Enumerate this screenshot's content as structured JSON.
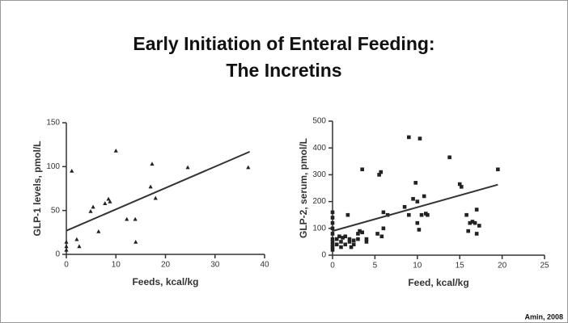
{
  "title": [
    "Early Initiation of Enteral Feeding:",
    "The Incretins"
  ],
  "citation": "Amin, 2008",
  "chart_data": [
    {
      "type": "scatter",
      "marker": "triangle",
      "color": "#222",
      "xlabel": "Feeds, kcal/kg",
      "ylabel": "GLP-1 levels, pmol/L",
      "x": [
        1.1,
        0,
        0,
        0,
        2.1,
        2.6,
        4.9,
        5.4,
        6.5,
        7.8,
        8.5,
        8.8,
        10,
        12.2,
        13.9,
        14,
        17,
        17.3,
        18,
        24.5,
        36.7
      ],
      "values": [
        95,
        14,
        9,
        5,
        17,
        9,
        49,
        54,
        26,
        58,
        63,
        60,
        118,
        40,
        40,
        14,
        77,
        103,
        64,
        99,
        99
      ],
      "trendline": {
        "x": [
          0,
          37
        ],
        "values": [
          27,
          117
        ]
      },
      "xlim": [
        0,
        40
      ],
      "xticks": [
        0,
        10,
        20,
        30,
        40
      ],
      "ylim": [
        0,
        150
      ],
      "yticks": [
        0,
        50,
        100,
        150
      ]
    },
    {
      "type": "scatter",
      "marker": "square",
      "color": "#222",
      "xlabel": "Feed, kcal/kg",
      "ylabel": "GLP-2, serum, pmol/L",
      "x": [
        0,
        0,
        0,
        0,
        0,
        0,
        0,
        0,
        0,
        0,
        0.5,
        0.5,
        0.8,
        1,
        1,
        1.2,
        1.5,
        1.5,
        1.8,
        2,
        2,
        2.2,
        2.5,
        2.5,
        3,
        3,
        3.2,
        3.5,
        3.5,
        4,
        4,
        5.3,
        5.5,
        5.7,
        5.8,
        6,
        6,
        6.5,
        8.5,
        9,
        9,
        9.5,
        9.8,
        10,
        10,
        10.2,
        10.3,
        10.5,
        10.8,
        11,
        11.2,
        13.8,
        15,
        15.2,
        15.8,
        16,
        16.2,
        16.5,
        16.8,
        17,
        17,
        17.3,
        19.5
      ],
      "values": [
        160,
        140,
        120,
        100,
        80,
        60,
        50,
        40,
        30,
        20,
        60,
        40,
        70,
        30,
        50,
        65,
        40,
        70,
        150,
        50,
        60,
        30,
        55,
        40,
        80,
        60,
        90,
        320,
        85,
        50,
        60,
        80,
        300,
        310,
        70,
        100,
        160,
        150,
        180,
        440,
        150,
        210,
        270,
        120,
        200,
        95,
        435,
        150,
        220,
        155,
        150,
        365,
        265,
        255,
        150,
        90,
        120,
        125,
        120,
        80,
        170,
        110,
        320
      ],
      "trendline": {
        "x": [
          0,
          19.5
        ],
        "values": [
          90,
          263
        ]
      },
      "xlim": [
        0,
        25
      ],
      "xticks": [
        0,
        5,
        10,
        15,
        20,
        25
      ],
      "ylim": [
        0,
        500
      ],
      "yticks": [
        0,
        100,
        200,
        300,
        400,
        500
      ]
    }
  ]
}
